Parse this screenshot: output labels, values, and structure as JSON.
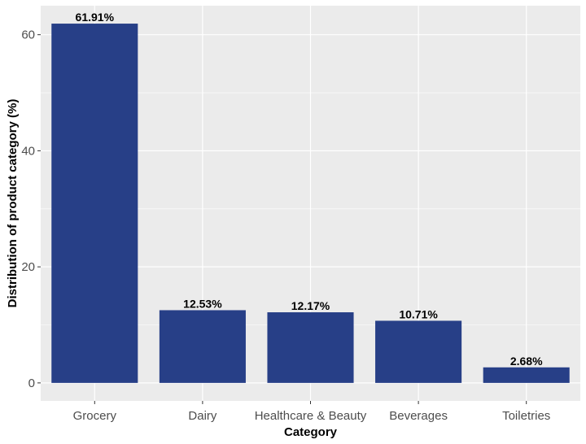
{
  "chart_data": {
    "type": "bar",
    "title": "",
    "xlabel": "Category",
    "ylabel": "Distribution of product category (%)",
    "categories": [
      "Grocery",
      "Dairy",
      "Healthcare & Beauty",
      "Beverages",
      "Toiletries"
    ],
    "values": [
      61.91,
      12.53,
      12.17,
      10.71,
      2.68
    ],
    "data_labels": [
      "61.91%",
      "12.53%",
      "12.17%",
      "10.71%",
      "2.68%"
    ],
    "y_ticks": [
      0,
      20,
      40,
      60
    ],
    "y_tick_labels": [
      "0",
      "20",
      "40",
      "60"
    ],
    "ylim": [
      -3.1,
      65.0
    ],
    "grid": true,
    "legend": "none",
    "colors": {
      "bar": "#273f87",
      "panel_background": "#ebebeb",
      "grid": "#ffffff"
    }
  }
}
